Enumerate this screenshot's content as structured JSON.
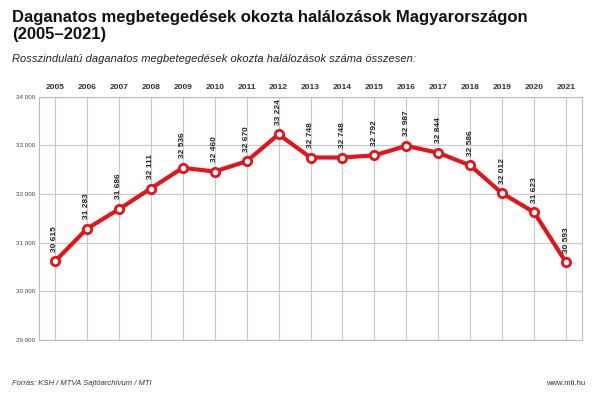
{
  "chart_data": {
    "type": "line",
    "title": "Daganatos megbetegedések okozta halálozások Magyarországon (2005–2021)",
    "subtitle": "Rosszindulatú daganatos megbetegedések okozta halálozások száma összesen:",
    "source": "Forrás: KSH / MTVA Sajtóarchívum / MTI",
    "website": "www.mti.hu",
    "categories": [
      "2005",
      "2006",
      "2007",
      "2008",
      "2009",
      "2010",
      "2011",
      "2012",
      "2013",
      "2014",
      "2015",
      "2016",
      "2017",
      "2018",
      "2019",
      "2020",
      "2021"
    ],
    "values": [
      30615,
      31283,
      31686,
      32111,
      32536,
      32460,
      32670,
      33224,
      32748,
      32748,
      32792,
      32987,
      32844,
      32586,
      32012,
      31623,
      30593
    ],
    "value_labels": [
      "30 615",
      "31 283",
      "31 686",
      "32 111",
      "32 536",
      "32 460",
      "32 670",
      "33 224",
      "32 748",
      "32 748",
      "32 792",
      "32 987",
      "32 844",
      "32 586",
      "32 012",
      "31 623",
      "30 593"
    ],
    "data_labels": true,
    "color": "#e3151a",
    "marker": "o",
    "line_style": "solid",
    "grid": true,
    "ylim": [
      29000,
      34000
    ],
    "yticks": [
      {
        "value": 29000,
        "label": "29 000"
      },
      {
        "value": 30000,
        "label": "30 000"
      },
      {
        "value": 31000,
        "label": "31 000"
      },
      {
        "value": 32000,
        "label": "32 000"
      },
      {
        "value": 33000,
        "label": "33 000"
      },
      {
        "value": 34000,
        "label": "34 000"
      }
    ]
  }
}
